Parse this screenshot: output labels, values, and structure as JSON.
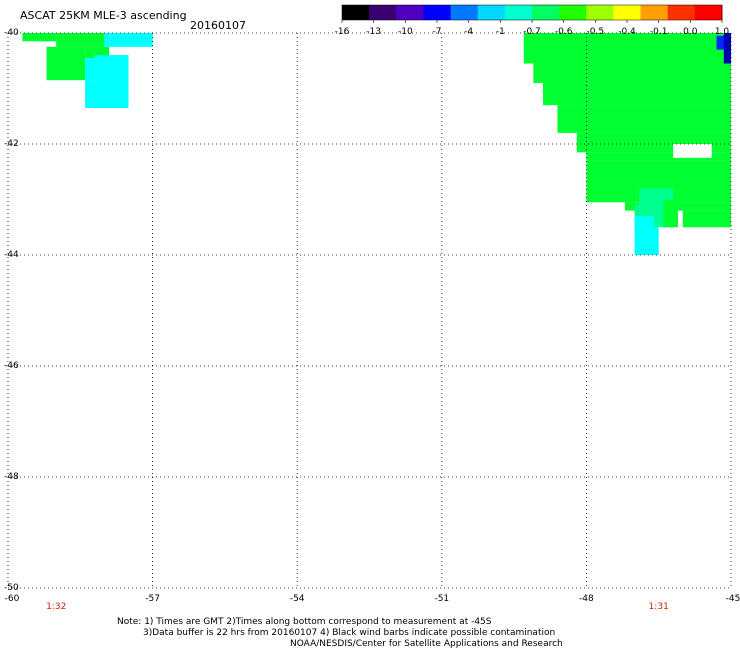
{
  "header": {
    "title": "ASCAT 25KM MLE-3 ascending",
    "date": "20160107"
  },
  "colorbar": {
    "ticks": [
      "-16",
      "-13",
      "-10",
      "-7",
      "-4",
      "-1",
      "-0.7",
      "-0.6",
      "-0.5",
      "-0.4",
      "-0.1",
      "0.0",
      "1.0"
    ],
    "colors": [
      "#000000",
      "#3a0070",
      "#5000c0",
      "#0000ff",
      "#0078ff",
      "#00d8ff",
      "#00ffd0",
      "#00ff60",
      "#20ff00",
      "#a0ff00",
      "#ffff00",
      "#ffa000",
      "#ff3000",
      "#ff0000"
    ]
  },
  "axes": {
    "y_labels": [
      "-40",
      "-42",
      "-44",
      "-46",
      "-48",
      "-50"
    ],
    "x_labels": [
      "-60",
      "-57",
      "-54",
      "-51",
      "-48",
      "-45"
    ],
    "x_values": [
      -60,
      -57,
      -54,
      -51,
      -48,
      -45
    ],
    "y_values": [
      -40,
      -42,
      -44,
      -46,
      -48,
      -50
    ]
  },
  "times": [
    {
      "label": "1:32",
      "lon": -59.0
    },
    {
      "label": "1:31",
      "lon": -46.5
    }
  ],
  "notes": {
    "line1": "Note: 1) Times are GMT 2)Times along bottom correspond to measurement at -45S",
    "line2": "3)Data buffer is 22 hrs from 20160107 4) Black wind barbs indicate possible contamination",
    "line3": "NOAA/NESDIS/Center for Satellite Applications and Research"
  },
  "swath": {
    "colors": {
      "green": "#00ff30",
      "cyan": "#00ffff",
      "cyangreen": "#00ff90",
      "blue": "#0028ff",
      "navy": "#0000b0"
    }
  }
}
